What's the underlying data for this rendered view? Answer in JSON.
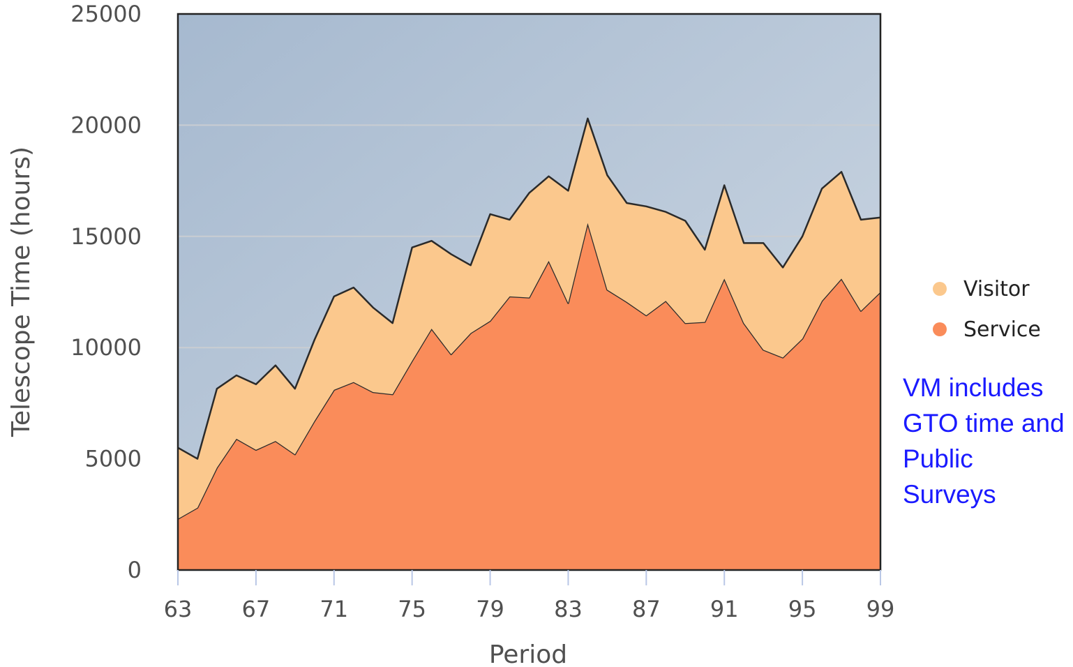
{
  "chart_data": {
    "type": "area",
    "stacked": true,
    "xlabel": "Period",
    "ylabel": "Telescope Time (hours)",
    "x": [
      63,
      64,
      65,
      66,
      67,
      68,
      69,
      70,
      71,
      72,
      73,
      74,
      75,
      76,
      77,
      78,
      79,
      80,
      81,
      82,
      83,
      84,
      85,
      86,
      87,
      88,
      89,
      90,
      91,
      92,
      93,
      94,
      95,
      96,
      97,
      98,
      99
    ],
    "xticks": [
      63,
      67,
      71,
      75,
      79,
      83,
      87,
      91,
      95,
      99
    ],
    "xlim": [
      63,
      99
    ],
    "ylim": [
      0,
      25000
    ],
    "yticks": [
      0,
      5000,
      10000,
      15000,
      20000,
      25000
    ],
    "grid": true,
    "legend_position": "right",
    "series": [
      {
        "name": "Service",
        "color": "#fa8c5a",
        "values": [
          2300,
          2800,
          4600,
          5900,
          5400,
          5800,
          5200,
          6700,
          8100,
          8450,
          8000,
          7900,
          9400,
          10850,
          9700,
          10650,
          11200,
          12300,
          12250,
          13900,
          12000,
          15600,
          12600,
          12050,
          11450,
          12100,
          11100,
          11150,
          13100,
          11100,
          9900,
          9550,
          10400,
          12100,
          13100,
          11650,
          12500
        ]
      },
      {
        "name": "Visitor",
        "color": "#fbc88d",
        "values": [
          3200,
          2200,
          3550,
          2850,
          2950,
          3400,
          2950,
          3650,
          4200,
          4250,
          3800,
          3200,
          5100,
          3950,
          4500,
          3050,
          4800,
          3450,
          4700,
          3800,
          5050,
          4700,
          5150,
          4450,
          4900,
          4000,
          4600,
          3250,
          4200,
          3600,
          4800,
          4050,
          4600,
          5050,
          4800,
          4100,
          3350
        ]
      }
    ]
  },
  "note": {
    "text": "VM includes GTO time and Public Surveys",
    "color": "#1a1aff"
  }
}
